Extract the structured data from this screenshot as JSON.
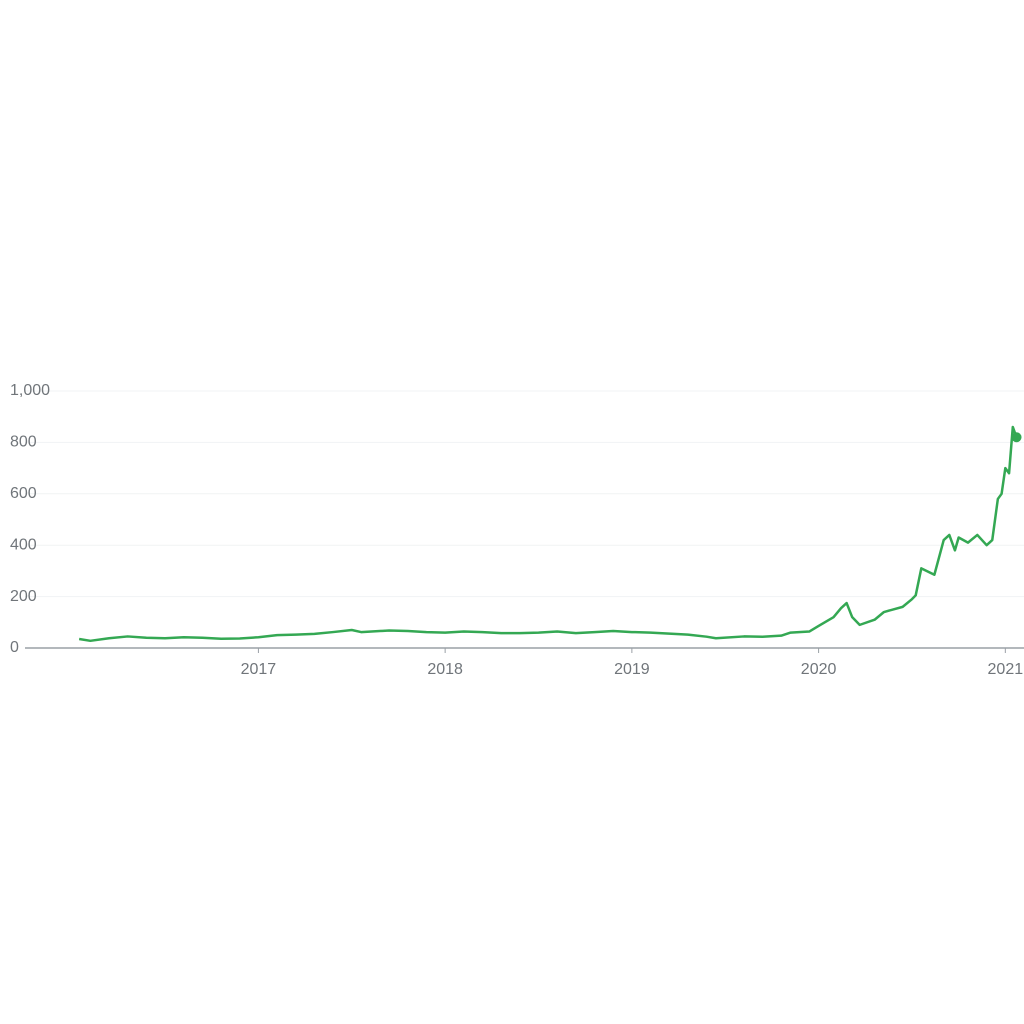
{
  "chart_data": {
    "type": "line",
    "x": [
      2016.04,
      2016.1,
      2016.2,
      2016.3,
      2016.4,
      2016.5,
      2016.6,
      2016.7,
      2016.8,
      2016.9,
      2017.0,
      2017.1,
      2017.2,
      2017.3,
      2017.4,
      2017.5,
      2017.55,
      2017.7,
      2017.8,
      2017.9,
      2018.0,
      2018.1,
      2018.2,
      2018.3,
      2018.4,
      2018.5,
      2018.6,
      2018.7,
      2018.8,
      2018.9,
      2019.0,
      2019.1,
      2019.2,
      2019.3,
      2019.4,
      2019.45,
      2019.6,
      2019.7,
      2019.8,
      2019.85,
      2019.95,
      2020.0,
      2020.08,
      2020.12,
      2020.15,
      2020.18,
      2020.22,
      2020.3,
      2020.35,
      2020.45,
      2020.5,
      2020.52,
      2020.55,
      2020.62,
      2020.67,
      2020.7,
      2020.73,
      2020.75,
      2020.8,
      2020.85,
      2020.9,
      2020.93,
      2020.96,
      2020.98,
      2021.0,
      2021.02,
      2021.04,
      2021.06
    ],
    "series": [
      {
        "color": "#34a853",
        "values": [
          35,
          28,
          38,
          45,
          40,
          38,
          42,
          40,
          36,
          37,
          42,
          50,
          52,
          55,
          62,
          70,
          62,
          68,
          66,
          62,
          60,
          64,
          62,
          58,
          58,
          60,
          64,
          58,
          62,
          66,
          62,
          60,
          56,
          52,
          44,
          38,
          45,
          44,
          48,
          60,
          64,
          86,
          120,
          155,
          175,
          120,
          90,
          110,
          140,
          160,
          190,
          205,
          310,
          285,
          420,
          440,
          380,
          430,
          410,
          440,
          400,
          420,
          580,
          600,
          700,
          680,
          860,
          820
        ]
      }
    ],
    "xlim": [
      2015.75,
      2021.1
    ],
    "xticks": [
      2017,
      2018,
      2019,
      2020,
      2021
    ],
    "ylim": [
      0,
      1000
    ],
    "yticks": [
      0,
      200,
      400,
      600,
      800,
      {
        "value": 1000,
        "label": "1,000"
      }
    ],
    "grid": true
  }
}
